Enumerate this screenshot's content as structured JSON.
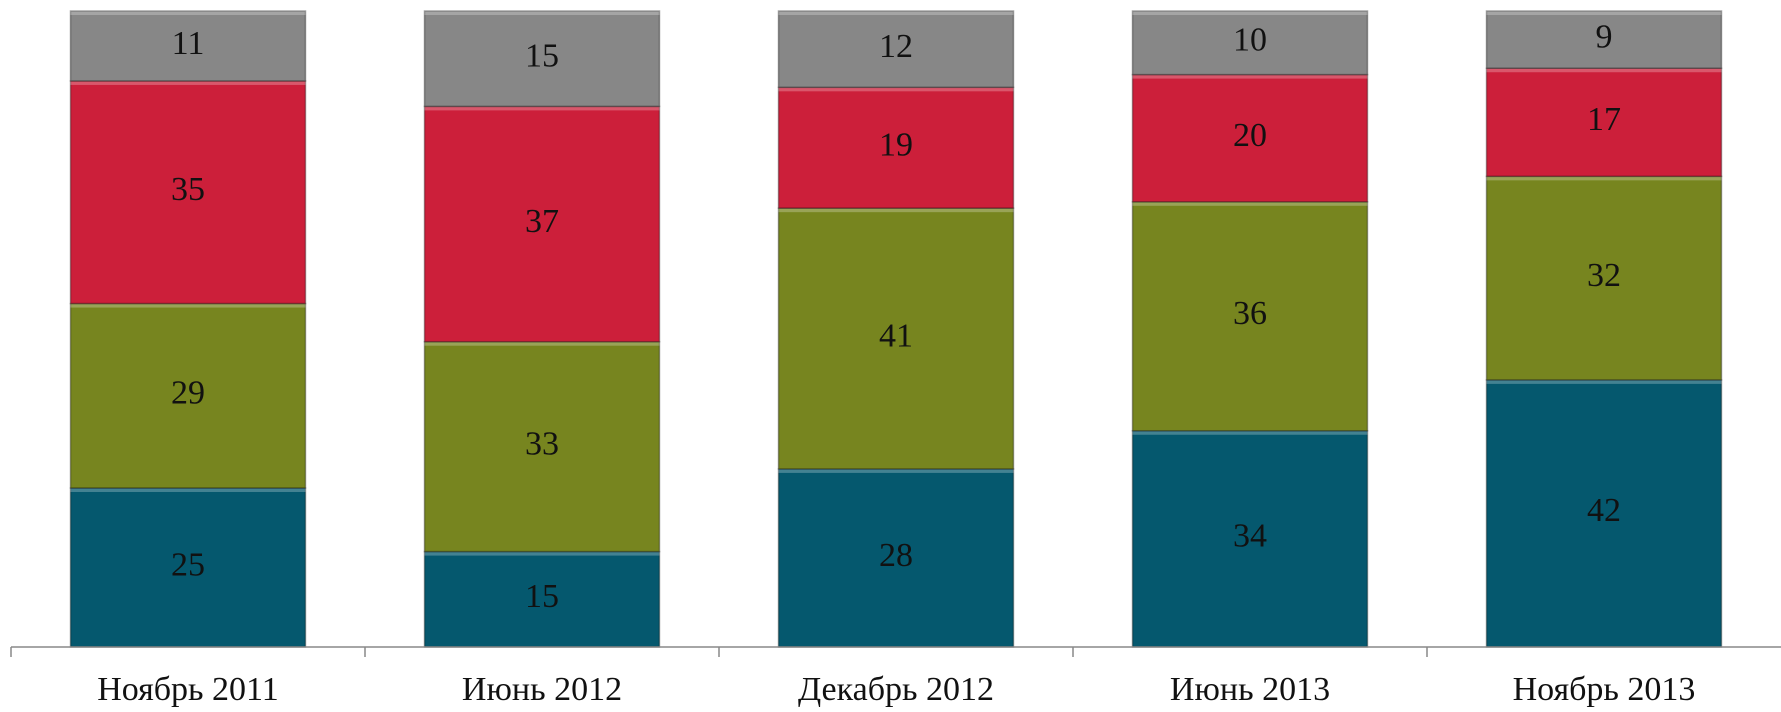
{
  "chart_data": {
    "type": "stacked_bar",
    "categories": [
      "Ноябрь 2011",
      "Июнь 2012",
      "Декабрь 2012",
      "Июнь 2013",
      "Ноябрь 2013"
    ],
    "series": [
      {
        "color": "#05586e",
        "values": [
          25,
          15,
          28,
          34,
          42
        ]
      },
      {
        "color": "#77851f",
        "values": [
          29,
          33,
          41,
          36,
          32
        ]
      },
      {
        "color": "#cc1f3a",
        "values": [
          35,
          37,
          19,
          20,
          17
        ]
      },
      {
        "color": "#878787",
        "values": [
          11,
          15,
          12,
          10,
          9
        ]
      }
    ],
    "ylim": [
      0,
      100
    ]
  }
}
